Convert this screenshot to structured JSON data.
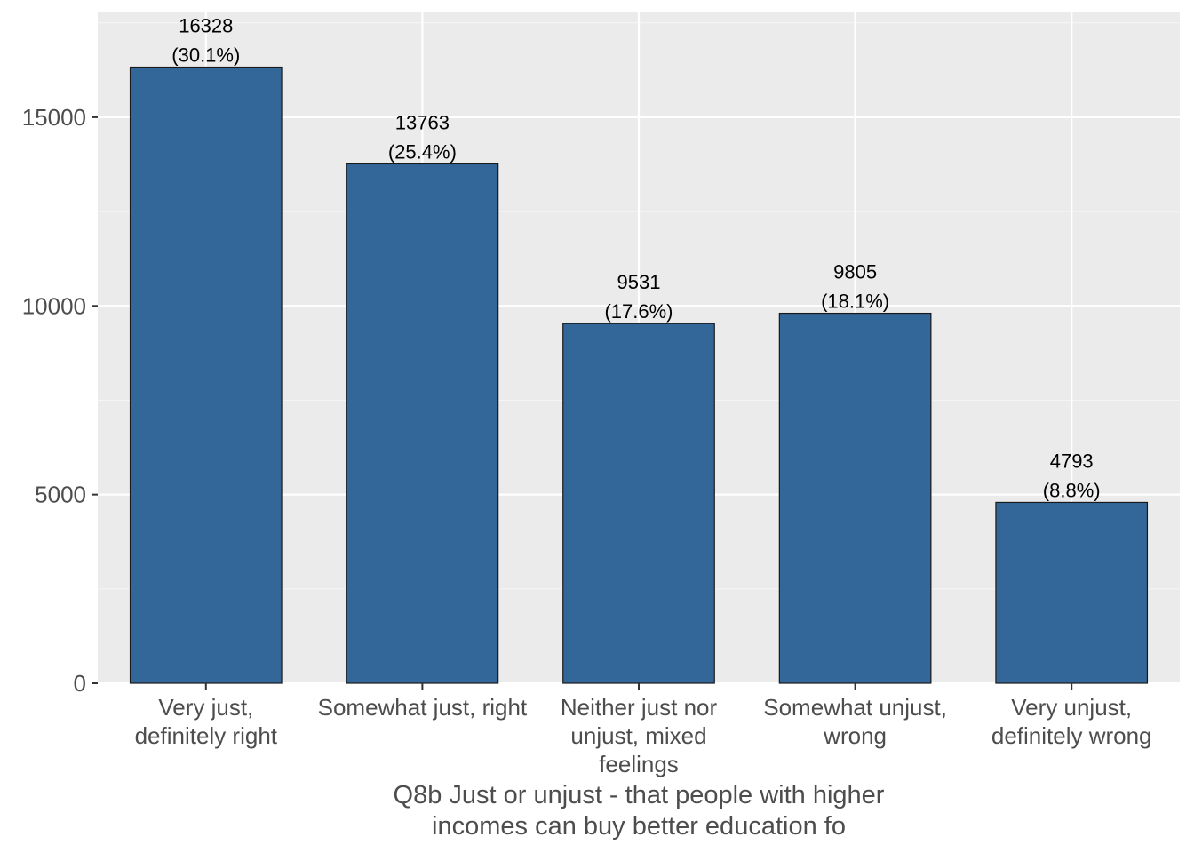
{
  "chart_data": {
    "type": "bar",
    "categories": [
      [
        "Very just,",
        "definitely right"
      ],
      [
        "Somewhat just, right"
      ],
      [
        "Neither just nor",
        "unjust, mixed",
        "feelings"
      ],
      [
        "Somewhat unjust,",
        "wrong"
      ],
      [
        "Very unjust,",
        "definitely wrong"
      ]
    ],
    "values": [
      16328,
      13763,
      9531,
      9805,
      4793
    ],
    "percent_labels": [
      "(30.1%)",
      "(25.4%)",
      "(17.6%)",
      "(18.1%)",
      "(8.8%)"
    ],
    "title": "",
    "xlabel": [
      "Q8b Just or unjust - that people with higher",
      "incomes can buy better education fo"
    ],
    "ylabel": "",
    "ylim": [
      0,
      17800
    ],
    "yticks": [
      0,
      5000,
      10000,
      15000
    ],
    "grid": true,
    "legend": "none",
    "colors": {
      "bar_fill": "#336699",
      "bar_stroke": "#1a1a1a",
      "panel_bg": "#ebebeb",
      "grid_major": "#ffffff",
      "grid_minor": "#f5f5f5"
    }
  }
}
